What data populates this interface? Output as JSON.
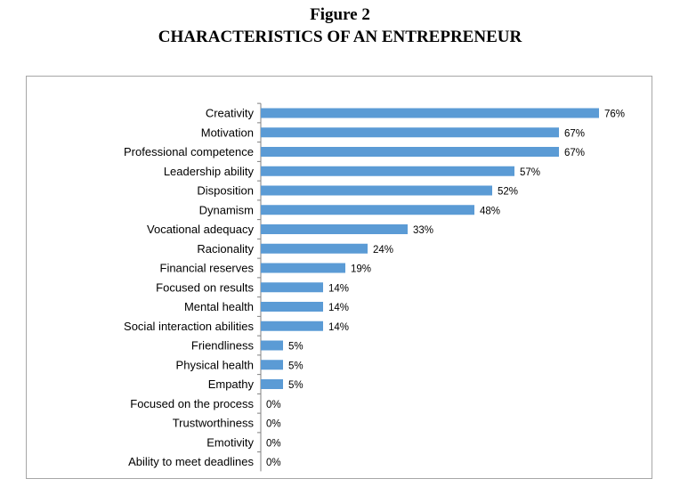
{
  "figure": {
    "number": "Figure 2",
    "title": "CHARACTERISTICS OF AN ENTREPRENEUR"
  },
  "chart_data": {
    "type": "bar",
    "orientation": "horizontal",
    "title": "CHARACTERISTICS OF AN ENTREPRENEUR",
    "xlabel": "",
    "ylabel": "",
    "xlim": [
      0,
      80
    ],
    "grid": false,
    "legend": "none",
    "bar_color": "#5b9bd5",
    "categories": [
      "Creativity",
      "Motivation",
      "Professional competence",
      "Leadership ability",
      "Disposition",
      "Dynamism",
      "Vocational adequacy",
      "Racionality",
      "Financial reserves",
      "Focused on results",
      "Mental health",
      "Social interaction abilities",
      "Friendliness",
      "Physical health",
      "Empathy",
      "Focused on the process",
      "Trustworthiness",
      "Emotivity",
      "Ability to meet deadlines"
    ],
    "values": [
      76,
      67,
      67,
      57,
      52,
      48,
      33,
      24,
      19,
      14,
      14,
      14,
      5,
      5,
      5,
      0,
      0,
      0,
      0
    ],
    "value_labels": [
      "76%",
      "67%",
      "67%",
      "57%",
      "52%",
      "48%",
      "33%",
      "24%",
      "19%",
      "14%",
      "14%",
      "14%",
      "5%",
      "5%",
      "5%",
      "0%",
      "0%",
      "0%",
      "0%"
    ]
  }
}
